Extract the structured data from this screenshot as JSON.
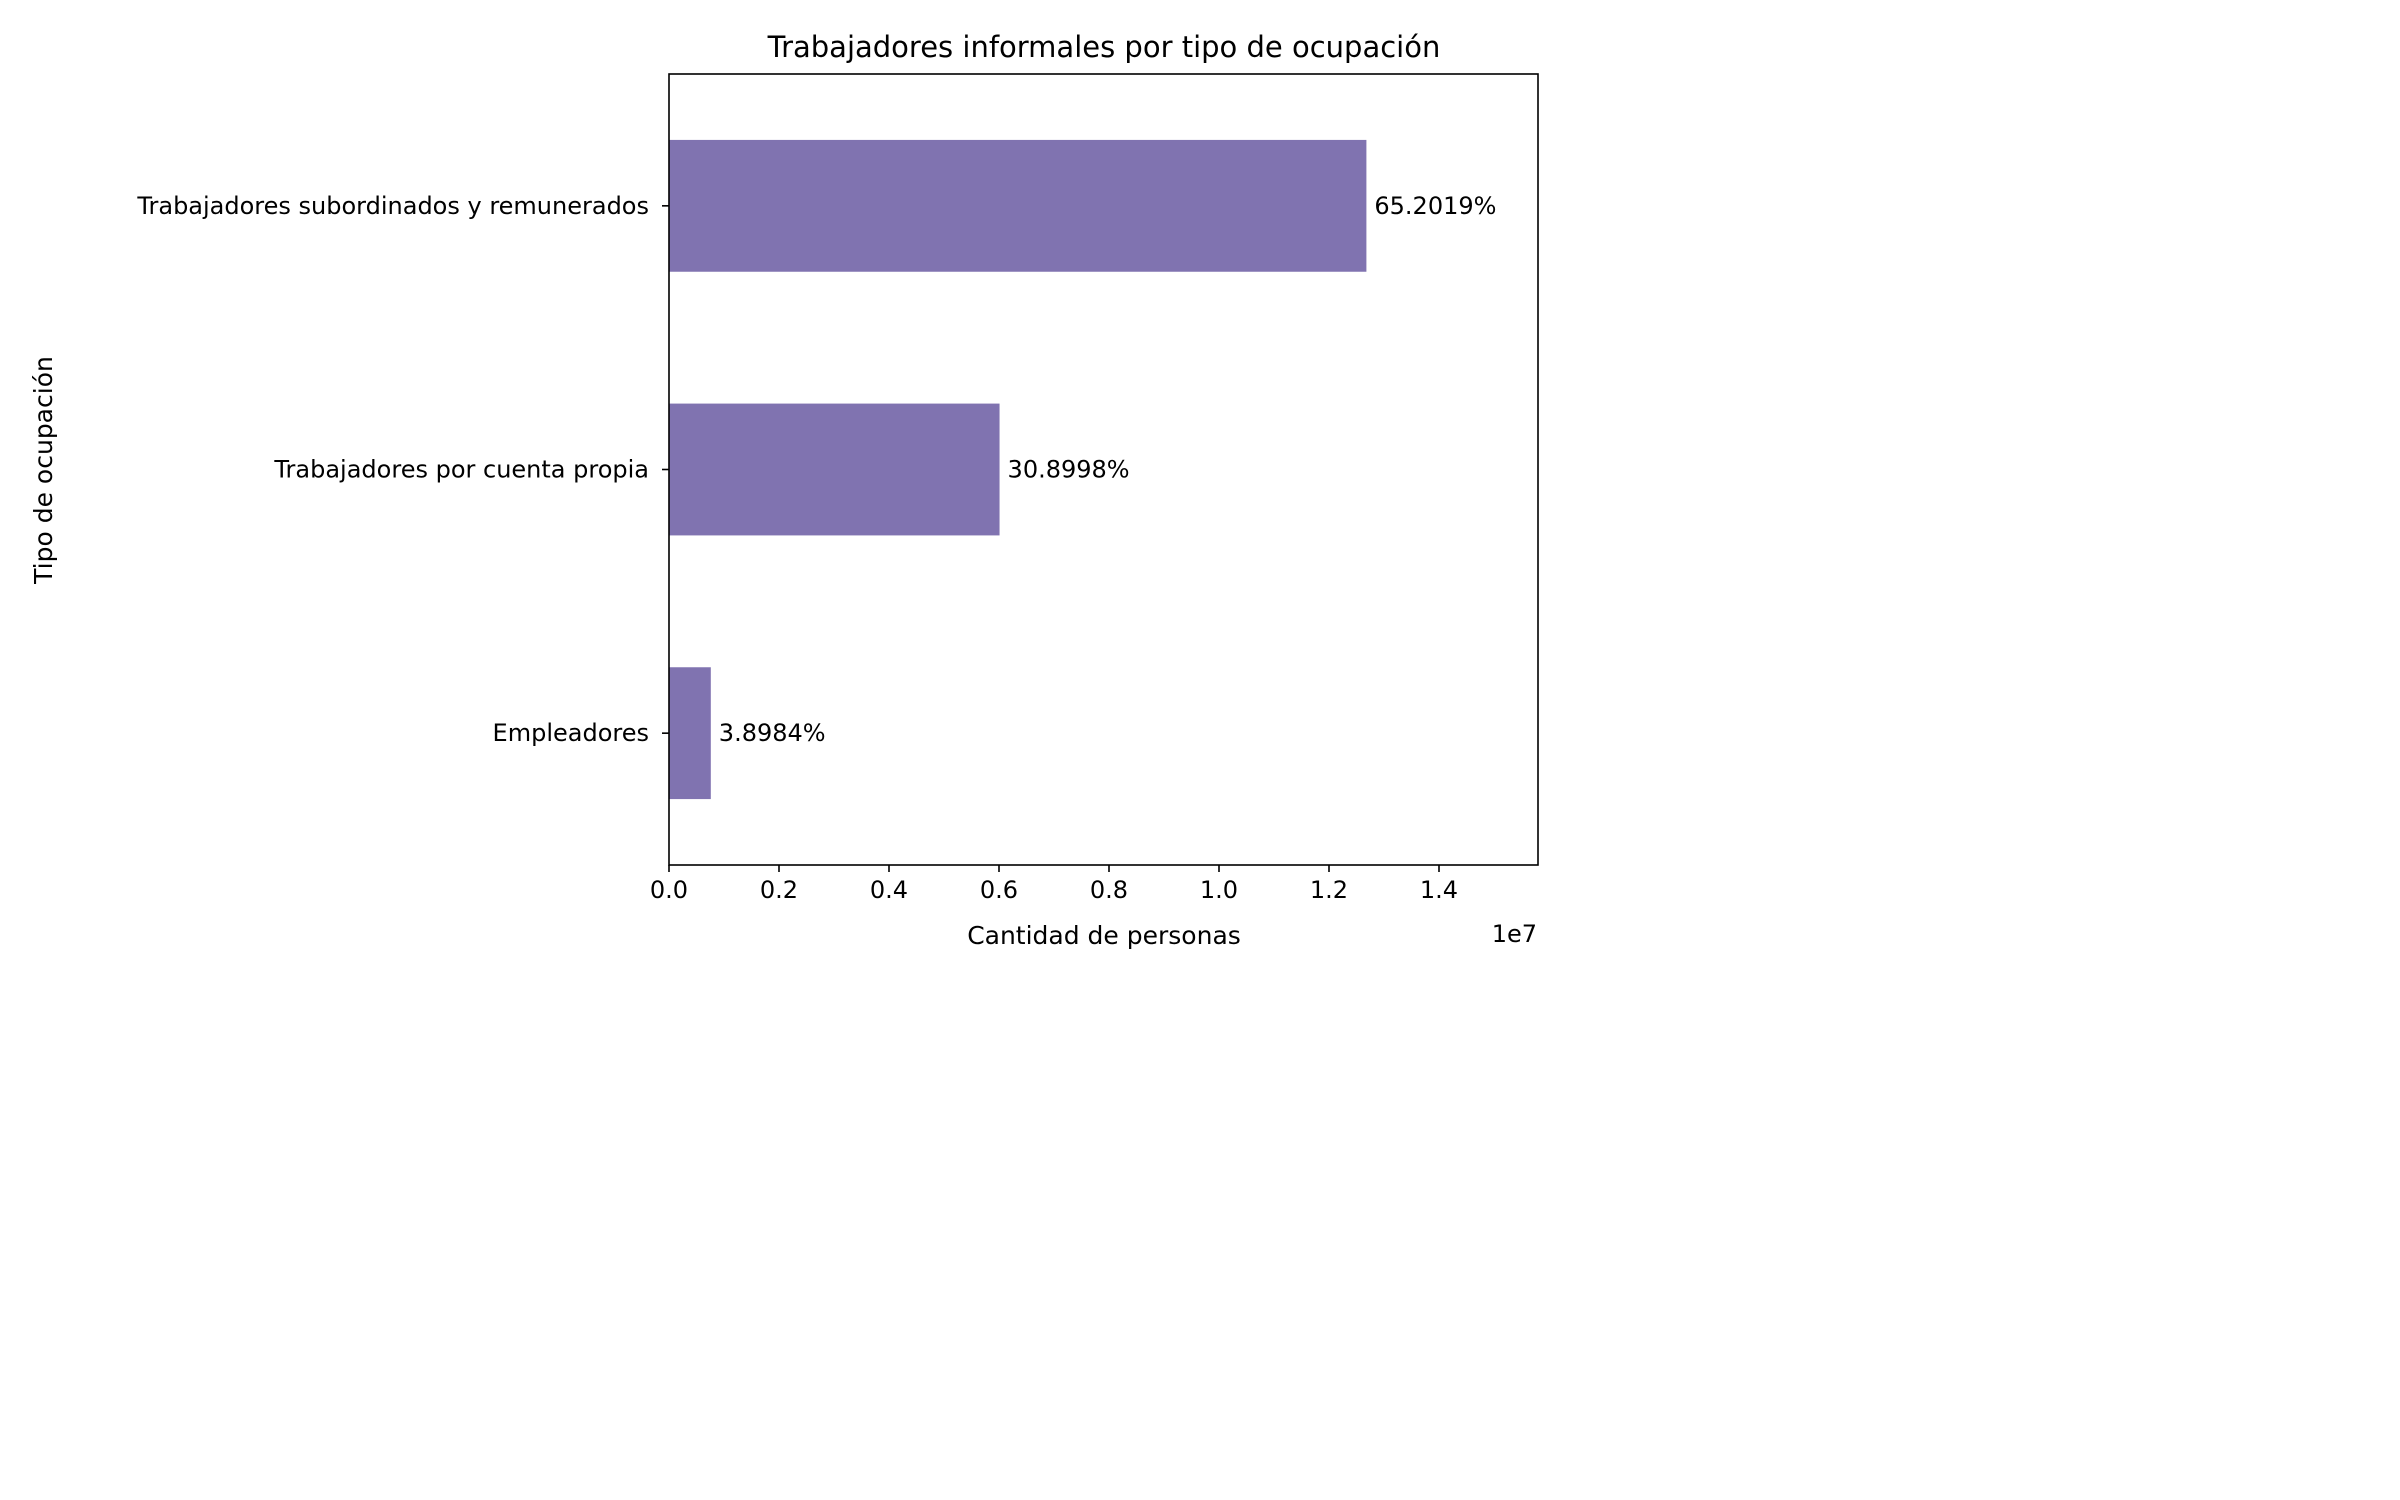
{
  "chart_data": {
    "type": "bar",
    "orientation": "horizontal",
    "title": "Trabajadores informales por tipo de ocupación",
    "xlabel": "Cantidad de personas",
    "ylabel": "Tipo de ocupación",
    "x_scale_note": "1e7",
    "categories": [
      "Trabajadores subordinados y remunerados",
      "Trabajadores por cuenta propia",
      "Empleadores"
    ],
    "values": [
      12680000,
      6010000,
      760000
    ],
    "data_labels": [
      "65.2019%",
      "30.8998%",
      "3.8984%"
    ],
    "xlim": [
      0,
      15800000
    ],
    "xticks": [
      0,
      2000000,
      4000000,
      6000000,
      8000000,
      10000000,
      12000000,
      14000000
    ],
    "xtick_labels": [
      "0.0",
      "0.2",
      "0.4",
      "0.6",
      "0.8",
      "1.0",
      "1.2",
      "1.4"
    ],
    "bar_color": "#8073b0",
    "grid": false,
    "legend": "none"
  }
}
